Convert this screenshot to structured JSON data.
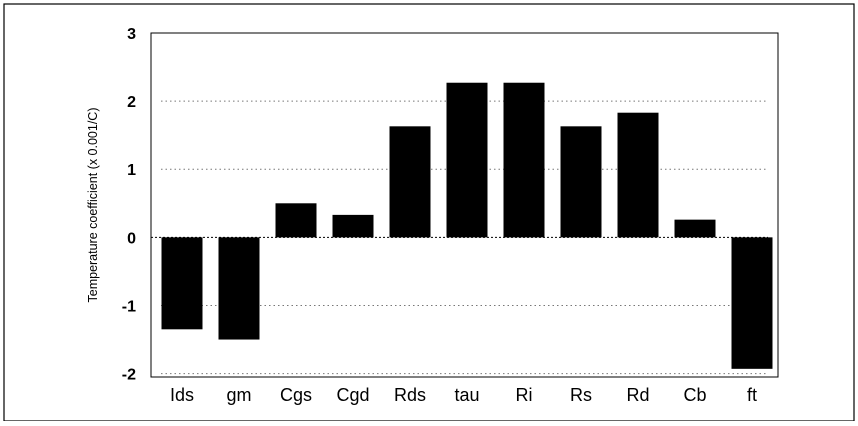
{
  "chart_data": {
    "type": "bar",
    "title": "",
    "xlabel": "",
    "ylabel": "Temperature coefficient (x 0.001/C)",
    "categories": [
      "Ids",
      "gm",
      "Cgs",
      "Cgd",
      "Rds",
      "tau",
      "Ri",
      "Rs",
      "Rd",
      "Cb",
      "ft"
    ],
    "values": [
      -1.35,
      -1.5,
      0.5,
      0.33,
      1.63,
      2.27,
      2.27,
      1.63,
      1.83,
      0.26,
      -1.93
    ],
    "ylim": [
      -2.05,
      3.0
    ],
    "yticks": [
      3,
      2,
      1,
      0,
      -1,
      -2
    ],
    "grid": "dotted-horizontal",
    "legend": "none",
    "bar_color": "#000000"
  }
}
